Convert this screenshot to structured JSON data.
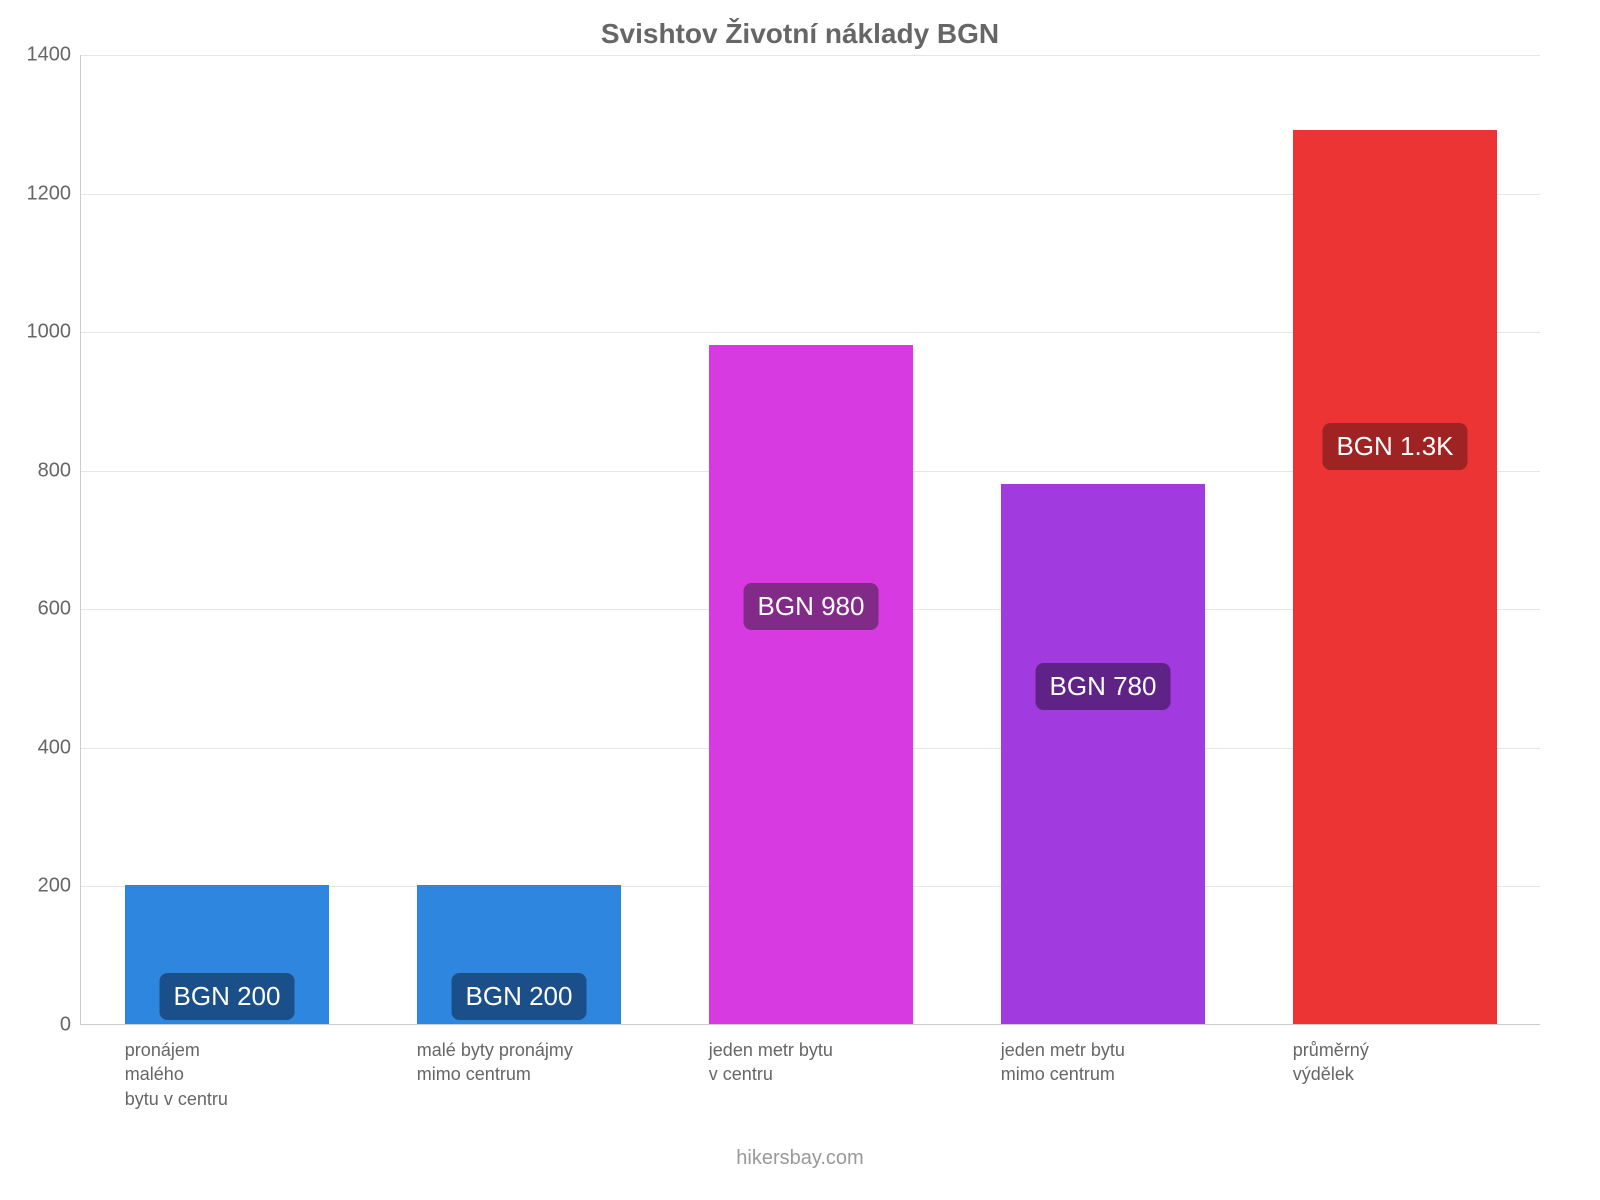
{
  "chart": {
    "type": "bar",
    "title": "Svishtov Životní náklady BGN",
    "title_color": "#666666",
    "title_fontsize": 28,
    "background_color": "#ffffff",
    "grid_color": "#e6e6e6",
    "axis_color": "#cccccc",
    "tick_label_color": "#666666",
    "tick_fontsize": 20,
    "xlabel_fontsize": 18,
    "ylim": [
      0,
      1400
    ],
    "ytick_step": 200,
    "yticks": [
      0,
      200,
      400,
      600,
      800,
      1000,
      1200,
      1400
    ],
    "bar_width_ratio": 0.7,
    "bars": [
      {
        "category": "pronájem\nmalého\nbytu v centru",
        "value": 200,
        "color": "#2e86de",
        "label": "BGN 200",
        "label_bg": "#1b4f8a",
        "label_offset": 30
      },
      {
        "category": "malé byty pronájmy\nmimo centrum",
        "value": 200,
        "color": "#2e86de",
        "label": "BGN 200",
        "label_bg": "#1b4f8a",
        "label_offset": 30
      },
      {
        "category": "jeden metr bytu\nv centru",
        "value": 980,
        "color": "#d63ae0",
        "label": "BGN 980",
        "label_bg": "#822a88",
        "label_offset": 420
      },
      {
        "category": "jeden metr bytu\nmimo centrum",
        "value": 780,
        "color": "#a13be0",
        "label": "BGN 780",
        "label_bg": "#5f2388",
        "label_offset": 340
      },
      {
        "category": "průměrný\nvýdělek",
        "value": 1290,
        "color": "#ec3434",
        "label": "BGN 1.3K",
        "label_bg": "#a02323",
        "label_offset": 580
      }
    ]
  },
  "footer": {
    "text": "hikersbay.com",
    "color": "#999999",
    "fontsize": 20
  }
}
